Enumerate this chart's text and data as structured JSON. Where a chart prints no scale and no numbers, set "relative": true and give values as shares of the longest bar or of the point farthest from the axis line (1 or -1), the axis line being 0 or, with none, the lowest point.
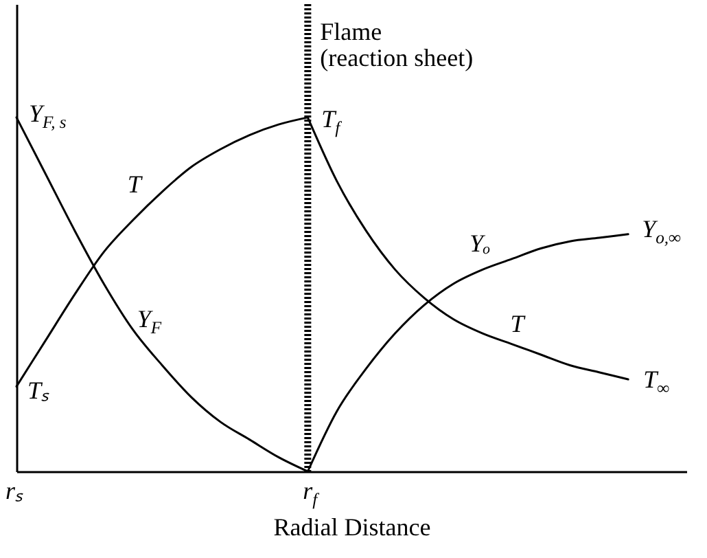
{
  "chart_data": {
    "type": "line",
    "relative": true,
    "xlabel": "Radial Distance",
    "categories": [
      "rₛ",
      null,
      null,
      null,
      null,
      null,
      null,
      null,
      null,
      null,
      "r$_{f}$",
      null,
      null,
      null,
      null,
      null,
      null,
      null,
      null,
      null,
      null,
      null,
      null,
      null
    ],
    "tick_labels": "x",
    "line_style": "solid",
    "series": [
      {
        "name": "T",
        "color": "#000000",
        "values": [
          0.24,
          0.37,
          0.5,
          0.62,
          0.71,
          0.79,
          0.86,
          0.91,
          0.95,
          0.98,
          1,
          null,
          null,
          null,
          null,
          null,
          null,
          null,
          null,
          null,
          null,
          null,
          null,
          null
        ]
      },
      {
        "name": "Y$_{F}$",
        "color": "#000000",
        "values": [
          1,
          0.84,
          0.68,
          0.53,
          0.4,
          0.3,
          0.21,
          0.14,
          0.09,
          0.04,
          0,
          null,
          null,
          null,
          null,
          null,
          null,
          null,
          null,
          null,
          null,
          null,
          null,
          null
        ]
      },
      {
        "name": "T",
        "color": "#000000",
        "values": [
          null,
          null,
          null,
          null,
          null,
          null,
          null,
          null,
          null,
          null,
          1,
          0.82,
          0.68,
          0.57,
          0.49,
          0.43,
          0.39,
          0.36,
          0.33,
          0.3,
          0.28,
          0.26,
          null,
          null
        ]
      },
      {
        "name": "Yₒ",
        "color": "#000000",
        "values": [
          null,
          null,
          null,
          null,
          null,
          null,
          null,
          null,
          null,
          null,
          0,
          0.17,
          0.29,
          0.39,
          0.47,
          0.53,
          0.57,
          0.6,
          0.63,
          0.65,
          0.66,
          0.67,
          null,
          null
        ]
      }
    ],
    "ref_lines": [
      {
        "axis": "x",
        "value": "r$_{f}$",
        "label": "Flame\n(reaction sheet)",
        "line_style": "dotted",
        "color": "#000000"
      }
    ],
    "annotations": [
      {
        "text": "Y$_{F, s}$",
        "x": "rₛ",
        "y": 1
      },
      {
        "text": "T$_{f}$",
        "x": "r$_{f}$",
        "y": 1
      },
      "Y$_{o,∞}$",
      "T$_{∞}$",
      {
        "text": "Tₛ",
        "x": "rₛ",
        "y": 0.24
      }
    ]
  }
}
